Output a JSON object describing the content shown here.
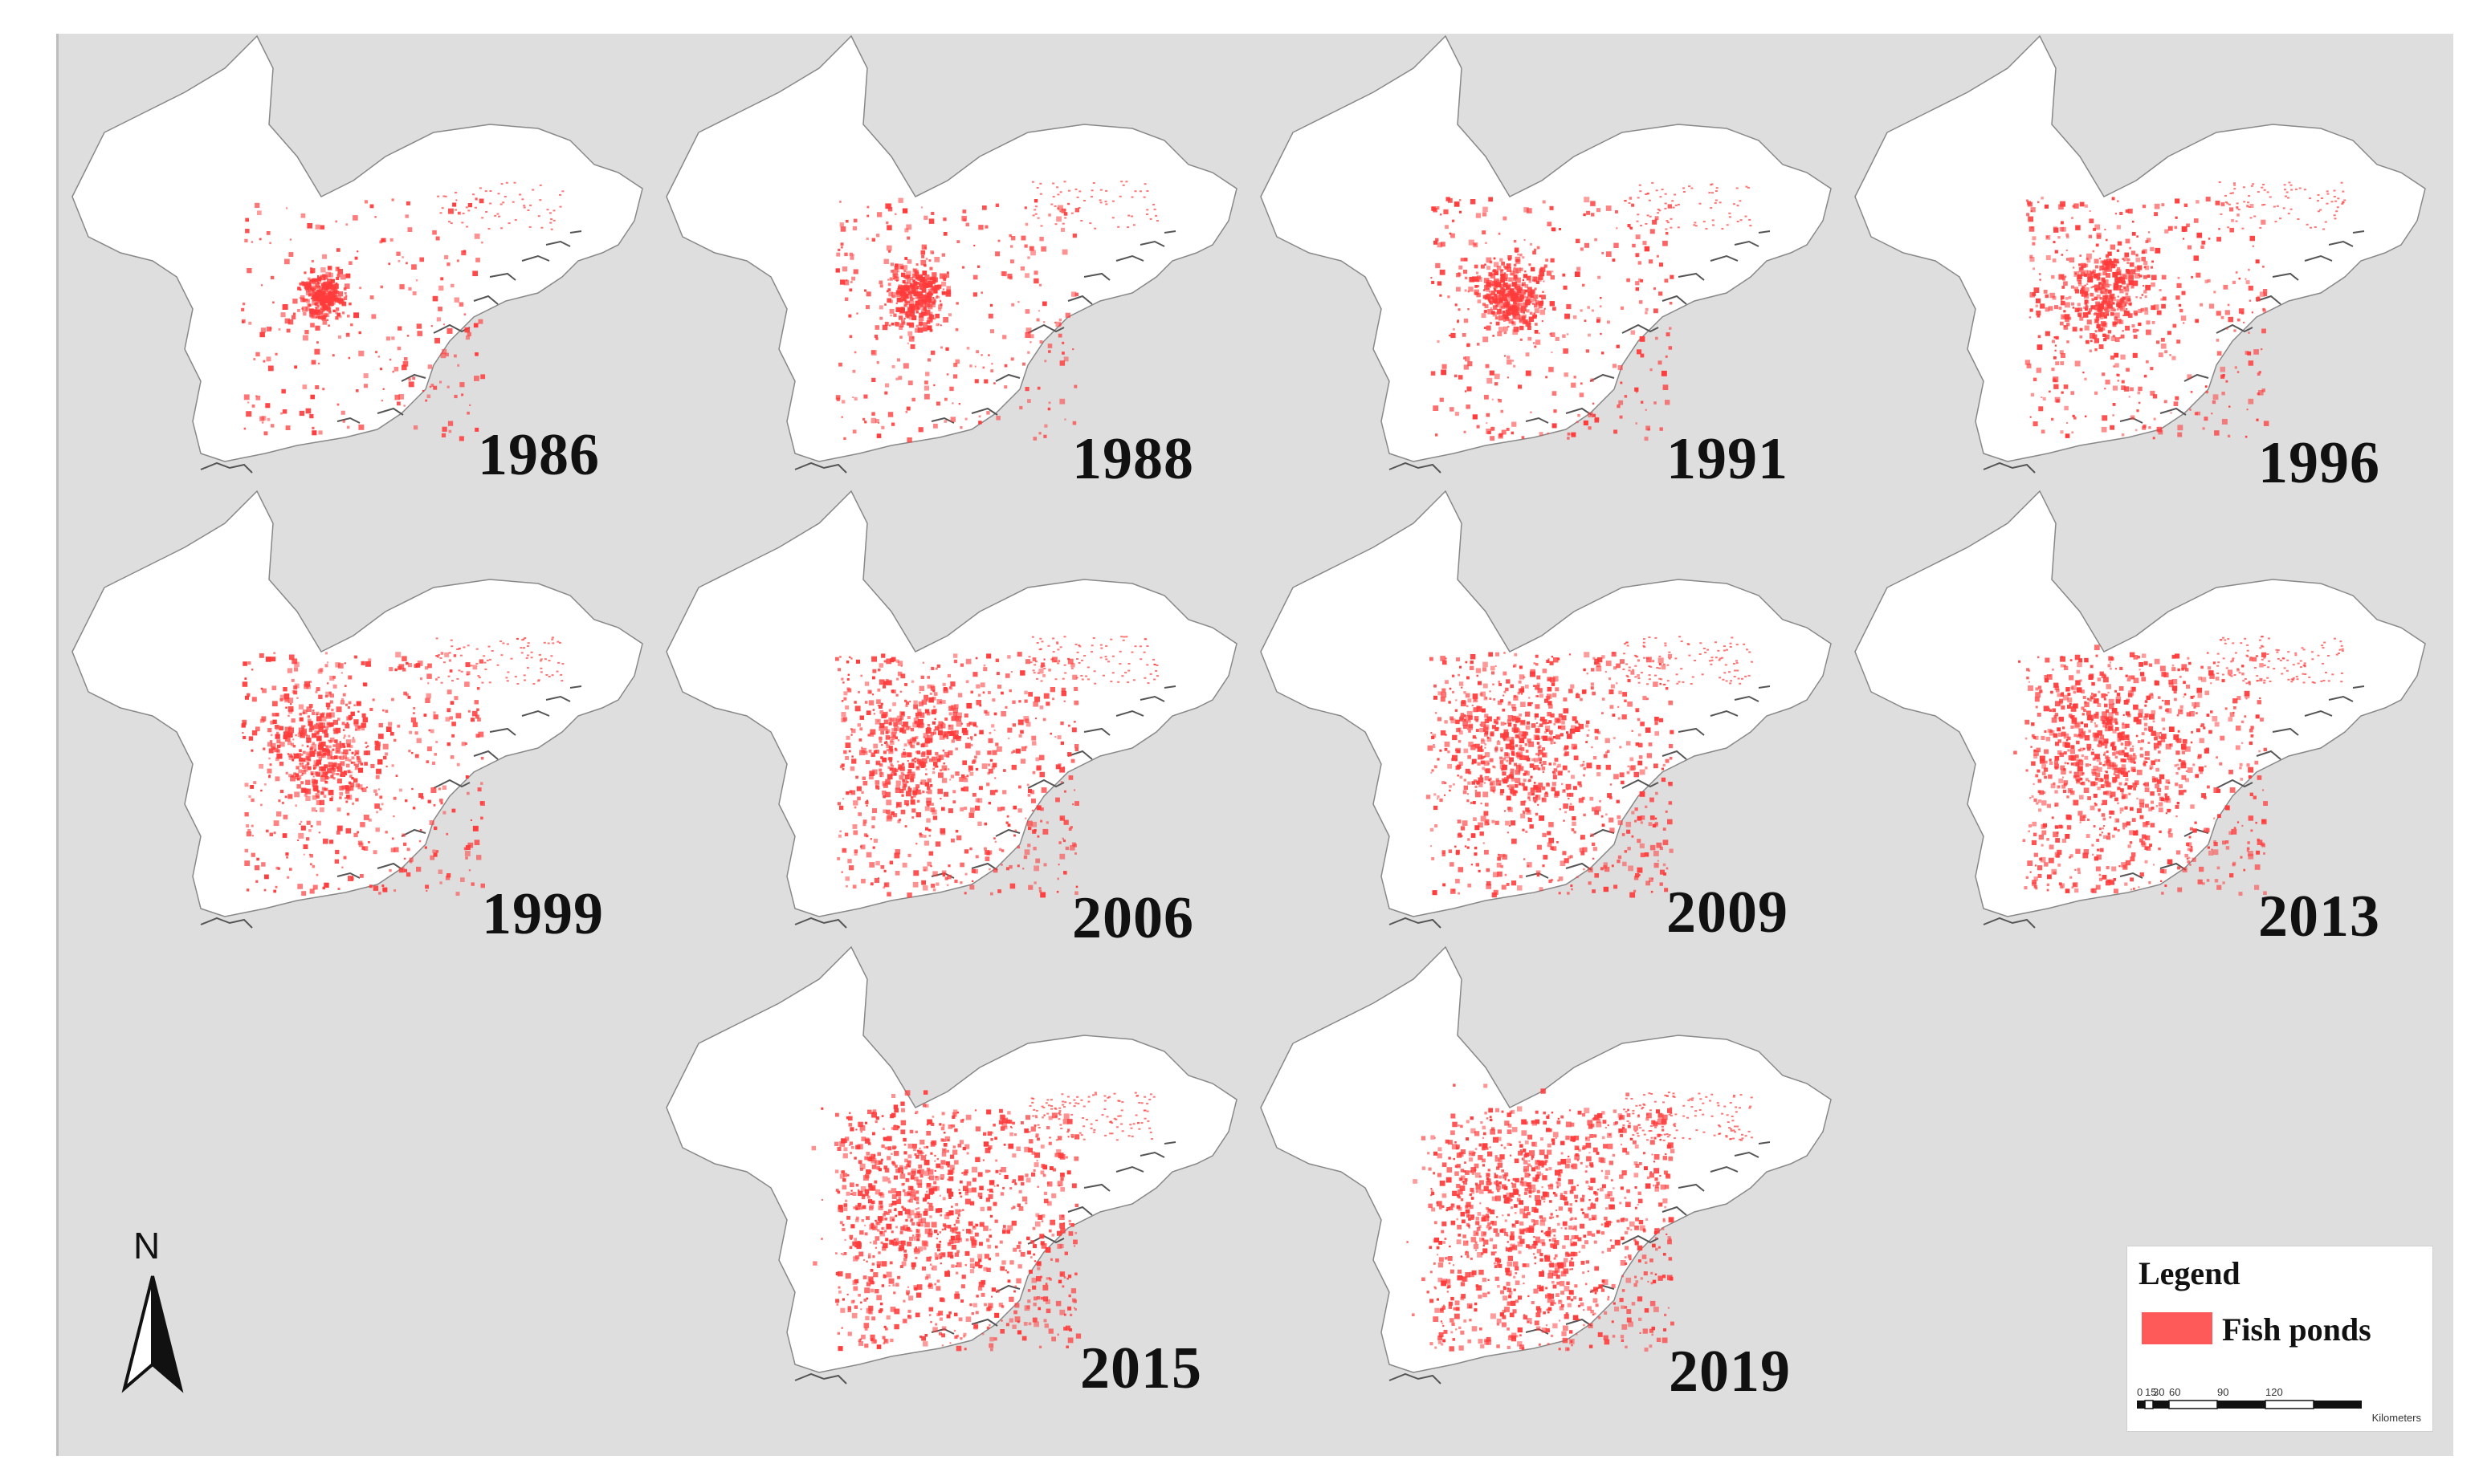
{
  "panels": [
    {
      "year": "1986"
    },
    {
      "year": "1988"
    },
    {
      "year": "1991"
    },
    {
      "year": "1996"
    },
    {
      "year": "1999"
    },
    {
      "year": "2006"
    },
    {
      "year": "2009"
    },
    {
      "year": "2013"
    },
    {
      "year": "2015"
    },
    {
      "year": "2019"
    }
  ],
  "north_arrow": {
    "letter": "N"
  },
  "legend": {
    "title": "Legend",
    "item_label": "Fish ponds",
    "item_color": "#ff5a5a",
    "scale_ticks": [
      "0",
      "15",
      "30",
      "60",
      "90",
      "120"
    ],
    "scale_unit": "Kilometers"
  },
  "colors": {
    "background": "#dedede",
    "land": "#ffffff",
    "fish_ponds": "#ff3b3b"
  }
}
